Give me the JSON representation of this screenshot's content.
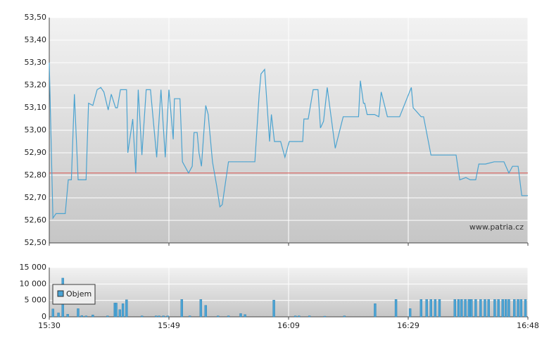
{
  "chart_data": [
    {
      "type": "line",
      "annotation": "www.patria.cz",
      "x": [
        0,
        0.6,
        1.1,
        2.6,
        3.1,
        3.6,
        4.1,
        4.7,
        6.0,
        6.4,
        7.1,
        7.8,
        8.4,
        8.9,
        9.6,
        10.1,
        10.8,
        11.1,
        11.6,
        12.2,
        12.6,
        12.8,
        13.6,
        14.1,
        14.5,
        15.1,
        15.8,
        16.5,
        17.5,
        18.2,
        18.9,
        19.5,
        20.2,
        20.4,
        21.3,
        21.7,
        22.7,
        23.3,
        23.6,
        24.1,
        24.4,
        24.8,
        25.5,
        25.9,
        26.6,
        27.3,
        27.8,
        28.2,
        29.2,
        30.7,
        31.3,
        33.5,
        34.2,
        34.5,
        35.1,
        35.9,
        36.2,
        36.7,
        37.7,
        38.4,
        39.1,
        41.3,
        41.5,
        42.2,
        43.0,
        43.8,
        44.2,
        44.7,
        45.3,
        46.6,
        47.9,
        50.4,
        50.7,
        51.2,
        51.4,
        51.8,
        53.0,
        53.7,
        54.1,
        55.1,
        57.1,
        59.0,
        59.3,
        60.6,
        61.0,
        62.2,
        66.3,
        66.9,
        67.9,
        68.6,
        69.5,
        70.0,
        71.1,
        72.5,
        74.1,
        74.9,
        75.5,
        76.4,
        77.0,
        78.0
      ],
      "series": [
        {
          "color": "#4ba3d0",
          "values": [
            53.3,
            52.61,
            52.63,
            52.63,
            52.78,
            52.78,
            53.16,
            52.78,
            52.78,
            53.12,
            53.11,
            53.18,
            53.19,
            53.17,
            53.09,
            53.16,
            53.1,
            53.1,
            53.18,
            53.18,
            53.18,
            52.9,
            53.05,
            52.81,
            53.18,
            52.89,
            53.18,
            53.18,
            52.88,
            53.18,
            52.88,
            53.18,
            52.96,
            53.14,
            53.14,
            52.86,
            52.81,
            52.84,
            52.99,
            52.99,
            52.9,
            52.84,
            53.11,
            53.07,
            52.86,
            52.75,
            52.66,
            52.67,
            52.86,
            52.86,
            52.86,
            52.86,
            53.16,
            53.25,
            53.27,
            52.95,
            53.07,
            52.95,
            52.95,
            52.88,
            52.95,
            52.95,
            53.05,
            53.05,
            53.18,
            53.18,
            53.01,
            53.04,
            53.19,
            52.92,
            53.06,
            53.06,
            53.22,
            53.12,
            53.12,
            53.07,
            53.07,
            53.06,
            53.17,
            53.06,
            53.06,
            53.19,
            53.1,
            53.06,
            53.06,
            52.89,
            52.89,
            52.78,
            52.79,
            52.78,
            52.78,
            52.85,
            52.85,
            52.86,
            52.86,
            52.81,
            52.84,
            52.84,
            52.71,
            52.71
          ]
        }
      ],
      "reference_line": {
        "value": 52.81,
        "color": "#d9534f"
      },
      "xlim": [
        0,
        78
      ],
      "ylim": [
        52.5,
        53.5
      ],
      "yticks": [
        {
          "value": 52.5,
          "label": "52,50"
        },
        {
          "value": 52.6,
          "label": "52,60"
        },
        {
          "value": 52.7,
          "label": "52,70"
        },
        {
          "value": 52.8,
          "label": "52,80"
        },
        {
          "value": 52.9,
          "label": "52,90"
        },
        {
          "value": 53.0,
          "label": "53,00"
        },
        {
          "value": 53.1,
          "label": "53,10"
        },
        {
          "value": 53.2,
          "label": "53,20"
        },
        {
          "value": 53.3,
          "label": "53,30"
        },
        {
          "value": 53.4,
          "label": "53,40"
        },
        {
          "value": 53.5,
          "label": "53,50"
        }
      ],
      "grid": true
    },
    {
      "type": "bar",
      "x": [
        0.6,
        1.5,
        2.2,
        3.0,
        4.7,
        5.3,
        6.0,
        7.1,
        9.5,
        10.7,
        10.9,
        11.5,
        12.0,
        12.6,
        15.1,
        17.4,
        17.9,
        18.6,
        19.3,
        21.6,
        22.9,
        24.7,
        25.5,
        27.5,
        29.2,
        31.2,
        31.9,
        36.6,
        40.1,
        40.7,
        42.4,
        44.9,
        48.1,
        53.1,
        56.5,
        58.8,
        60.6,
        61.5,
        62.2,
        62.9,
        63.6,
        66.1,
        66.7,
        67.2,
        67.8,
        68.4,
        68.8,
        69.5,
        70.3,
        71.0,
        71.6,
        72.6,
        73.2,
        73.9,
        74.4,
        74.9,
        75.8,
        76.4,
        76.9,
        77.6
      ],
      "series": [
        {
          "name": "Objem",
          "color": "#4aa3d4",
          "values": [
            2400,
            1200,
            11800,
            800,
            2500,
            400,
            300,
            600,
            300,
            4200,
            4200,
            2200,
            4000,
            5200,
            300,
            300,
            300,
            300,
            300,
            5300,
            300,
            5300,
            3500,
            300,
            300,
            1000,
            700,
            5100,
            300,
            300,
            300,
            200,
            300,
            4000,
            5300,
            2500,
            5300,
            5300,
            5300,
            5300,
            5300,
            5300,
            5300,
            5300,
            5300,
            5300,
            5300,
            5300,
            5300,
            5300,
            5300,
            5300,
            5300,
            5300,
            5300,
            5300,
            5300,
            5300,
            5300,
            5300
          ]
        }
      ],
      "xlim": [
        0,
        78
      ],
      "xticks": [
        {
          "value": 0,
          "label": "15:30"
        },
        {
          "value": 19.5,
          "label": "15:49"
        },
        {
          "value": 39,
          "label": "16:09"
        },
        {
          "value": 58.5,
          "label": "16:29"
        },
        {
          "value": 78,
          "label": "16:48"
        }
      ],
      "ylim": [
        0,
        15000
      ],
      "yticks": [
        0,
        {
          "value": 5000,
          "label": "5 000"
        },
        {
          "value": 10000,
          "label": "10 000"
        },
        {
          "value": 15000,
          "label": "15 000"
        }
      ],
      "grid": true
    }
  ]
}
